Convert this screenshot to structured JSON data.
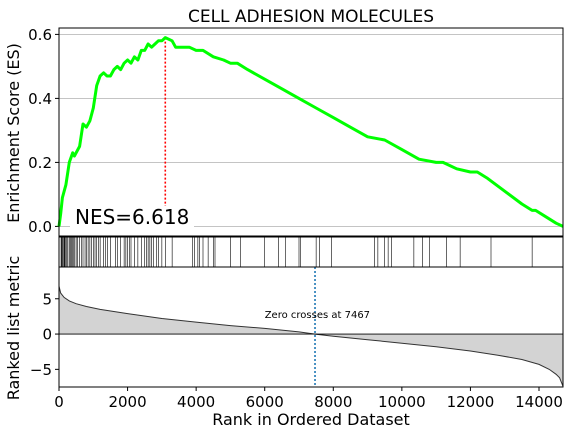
{
  "chart_data": {
    "type": "line",
    "title": "CELL ADHESION MOLECULES",
    "xlabel": "Rank in Ordered Dataset",
    "es_panel": {
      "ylabel": "Enrichment Score (ES)",
      "ylim": [
        -0.03,
        0.62
      ],
      "yticks": [
        0.0,
        0.2,
        0.4,
        0.6
      ],
      "ytick_labels": [
        "0.0",
        "0.2",
        "0.4",
        "0.6"
      ],
      "grid": "horizontal",
      "line_color": "#00ff00",
      "peak_line_color": "#ff0000",
      "nes_label": "NES=6.618",
      "peak": {
        "x": 3100,
        "y": 0.59
      },
      "series": {
        "x": [
          0,
          50,
          100,
          200,
          300,
          400,
          450,
          600,
          700,
          800,
          900,
          1000,
          1100,
          1200,
          1300,
          1400,
          1500,
          1600,
          1700,
          1800,
          1900,
          2000,
          2100,
          2200,
          2300,
          2400,
          2500,
          2600,
          2700,
          2800,
          2900,
          3000,
          3100,
          3300,
          3400,
          3600,
          3800,
          4000,
          4200,
          4500,
          4800,
          5000,
          5200,
          5500,
          6000,
          6500,
          7000,
          7500,
          8000,
          8500,
          9000,
          9500,
          10000,
          10500,
          11000,
          11200,
          11400,
          11600,
          12000,
          12200,
          12500,
          13000,
          13500,
          13800,
          13900,
          14200,
          14500,
          14700
        ],
        "y": [
          0.0,
          0.04,
          0.09,
          0.13,
          0.2,
          0.23,
          0.22,
          0.25,
          0.32,
          0.31,
          0.33,
          0.37,
          0.44,
          0.47,
          0.48,
          0.47,
          0.47,
          0.49,
          0.5,
          0.49,
          0.51,
          0.52,
          0.51,
          0.53,
          0.52,
          0.55,
          0.55,
          0.57,
          0.56,
          0.57,
          0.58,
          0.58,
          0.59,
          0.58,
          0.56,
          0.56,
          0.56,
          0.55,
          0.55,
          0.53,
          0.52,
          0.51,
          0.51,
          0.49,
          0.46,
          0.43,
          0.4,
          0.37,
          0.34,
          0.31,
          0.28,
          0.27,
          0.24,
          0.21,
          0.2,
          0.2,
          0.19,
          0.18,
          0.17,
          0.17,
          0.15,
          0.11,
          0.07,
          0.05,
          0.05,
          0.03,
          0.01,
          0.0
        ]
      }
    },
    "hits": [
      60,
      80,
      100,
      120,
      150,
      170,
      200,
      230,
      260,
      300,
      330,
      360,
      400,
      430,
      460,
      500,
      540,
      600,
      650,
      700,
      760,
      800,
      850,
      900,
      950,
      1000,
      1050,
      1100,
      1150,
      1200,
      1300,
      1350,
      1420,
      1500,
      1650,
      1700,
      1800,
      1900,
      1950,
      2000,
      2050,
      2100,
      2200,
      2300,
      2400,
      2500,
      2550,
      2600,
      2650,
      2700,
      2750,
      2850,
      2900,
      3000,
      3100,
      3300,
      3900,
      3950,
      4050,
      4100,
      4200,
      4350,
      4500,
      4550,
      5000,
      5300,
      6000,
      6400,
      6600,
      7000,
      7050,
      7500,
      7600,
      7950,
      9200,
      9300,
      9500,
      9600,
      9700,
      10350,
      10600,
      10800,
      11300,
      11700,
      12600,
      13800
    ],
    "ranked_panel": {
      "ylabel": "Ranked list metric",
      "ylim": [
        -7.5,
        9.5
      ],
      "yticks": [
        -5,
        0,
        5
      ],
      "ytick_labels": [
        "−5",
        "0",
        "5"
      ],
      "fill_color": "#d3d3d3",
      "zero_cross_x": 7467,
      "zero_cross_label": "Zero crosses at 7467",
      "line_color": "#1f77b4",
      "curve": {
        "x": [
          0,
          50,
          150,
          300,
          500,
          800,
          1200,
          2000,
          3000,
          4000,
          5000,
          6000,
          7000,
          7467,
          8000,
          9000,
          10000,
          11000,
          12000,
          12800,
          13500,
          14000,
          14300,
          14500,
          14600,
          14650,
          14700
        ],
        "y": [
          6.8,
          5.8,
          5.2,
          4.7,
          4.3,
          3.9,
          3.5,
          2.9,
          2.2,
          1.7,
          1.2,
          0.8,
          0.3,
          0.0,
          -0.3,
          -0.8,
          -1.3,
          -1.8,
          -2.4,
          -3.0,
          -3.6,
          -4.3,
          -5.0,
          -5.7,
          -6.2,
          -6.8,
          -7.4
        ]
      }
    },
    "xlim": [
      0,
      14700
    ],
    "xticks": [
      0,
      2000,
      4000,
      6000,
      8000,
      10000,
      12000,
      14000
    ],
    "xtick_labels": [
      "0",
      "2000",
      "4000",
      "6000",
      "8000",
      "10000",
      "12000",
      "14000"
    ]
  }
}
